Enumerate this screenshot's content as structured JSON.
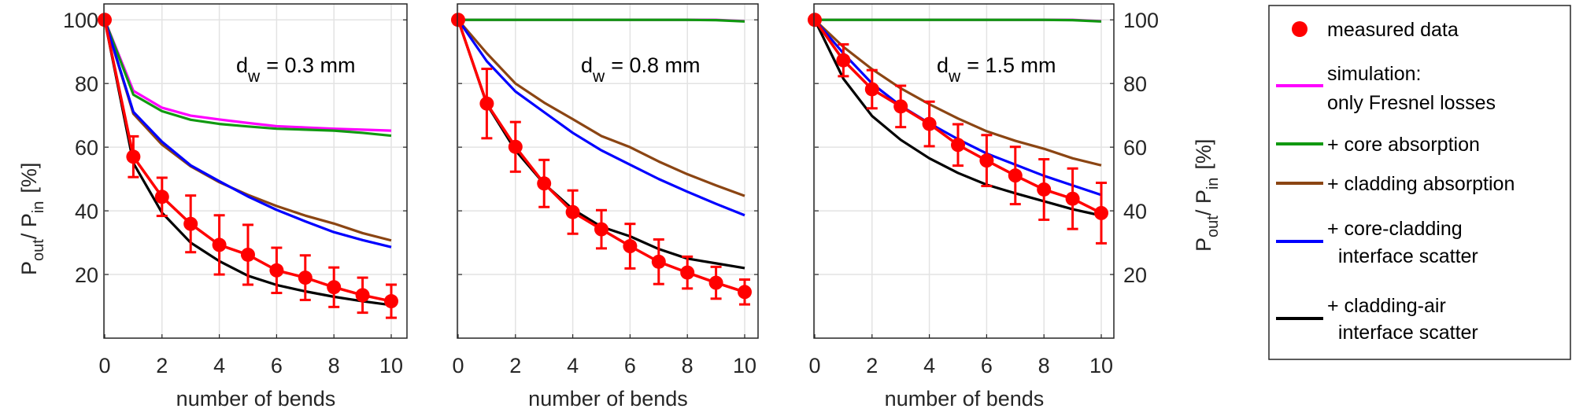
{
  "chart_data": {
    "type": "line",
    "xlabel": "number of bends",
    "ylabel": {
      "main": "P",
      "sub_out": "out",
      "mid": "/ P",
      "sub_in": "in",
      "unit": "[%]"
    },
    "xticks": [
      0,
      2,
      4,
      6,
      8,
      10
    ],
    "yticks": [
      20,
      40,
      60,
      80,
      100
    ],
    "xlim": [
      0,
      10.5
    ],
    "ylim": [
      0,
      105
    ],
    "grid": true,
    "legend_position": "right",
    "x": [
      0,
      1,
      2,
      3,
      4,
      5,
      6,
      7,
      8,
      9,
      10
    ],
    "colors": {
      "measured": "#ff0000",
      "fresnel": "#ff00ff",
      "core_abs": "#119911",
      "clad_abs": "#8b4513",
      "core_clad": "#0000ff",
      "clad_air": "#000000"
    },
    "legend": [
      {
        "key": "measured",
        "lines": [
          "measured data"
        ],
        "marker": "dot"
      },
      {
        "key": "fresnel",
        "lines": [
          "simulation:",
          "only Fresnel losses"
        ],
        "marker": "line"
      },
      {
        "key": "core_abs",
        "lines": [
          "+ core absorption"
        ],
        "marker": "line"
      },
      {
        "key": "clad_abs",
        "lines": [
          "+ cladding absorption"
        ],
        "marker": "line"
      },
      {
        "key": "core_clad",
        "lines": [
          "+ core-cladding",
          "  interface scatter"
        ],
        "marker": "line"
      },
      {
        "key": "clad_air",
        "lines": [
          "+ cladding-air",
          "  interface scatter"
        ],
        "marker": "line"
      }
    ],
    "panels": [
      {
        "annotation": {
          "d": "d",
          "sub": "w",
          "rest": "= 0.3 mm"
        },
        "measured": [
          100,
          57,
          44.4,
          35.9,
          29.3,
          26.2,
          21.3,
          19,
          16,
          13.5,
          11.6
        ],
        "measured_err": [
          0,
          6.4,
          6,
          8.9,
          9.3,
          9.4,
          7.1,
          7,
          6.2,
          5.5,
          5.2
        ],
        "fresnel": [
          100,
          77.7,
          72.4,
          69.9,
          68.7,
          67.6,
          66.6,
          66.2,
          65.8,
          65.5,
          65.2
        ],
        "core_abs": [
          100,
          76.5,
          71.3,
          68.6,
          67.3,
          66.5,
          65.8,
          65.5,
          65.2,
          64.5,
          63.6
        ],
        "clad_abs": [
          100,
          70.5,
          60.8,
          54,
          49,
          45,
          41.5,
          38.5,
          36,
          33,
          30.7
        ],
        "core_clad": [
          100,
          71.1,
          61.7,
          54.3,
          49.3,
          44.5,
          40.3,
          36.7,
          33.3,
          30.8,
          28.6
        ],
        "clad_air": [
          100,
          55,
          39.4,
          30,
          24.2,
          19.6,
          16.7,
          14.7,
          13,
          11.6,
          10.4
        ]
      },
      {
        "annotation": {
          "d": "d",
          "sub": "w",
          "rest": "= 0.8 mm"
        },
        "measured": [
          100,
          73.7,
          60.1,
          48.6,
          39.6,
          34.2,
          28.9,
          24,
          20.6,
          17.4,
          14.5
        ],
        "measured_err": [
          0,
          10.9,
          7.8,
          7.4,
          6.8,
          6,
          7,
          7,
          5,
          5,
          3.9
        ],
        "fresnel": [
          100,
          100,
          100,
          100,
          100,
          100,
          100,
          100,
          100,
          100,
          99.6
        ],
        "core_abs": [
          100,
          100,
          100,
          100,
          100,
          100,
          100,
          100,
          100,
          99.9,
          99.5
        ],
        "clad_abs": [
          100,
          89.5,
          80,
          74,
          68.8,
          63.5,
          60,
          55.5,
          51.5,
          48,
          44.7
        ],
        "core_clad": [
          100,
          87,
          77.5,
          71,
          64.5,
          59,
          54.5,
          50,
          46,
          42.2,
          38.6
        ],
        "clad_air": [
          100,
          73.5,
          59,
          48.5,
          40.5,
          35,
          32,
          28,
          25,
          23.5,
          22
        ]
      },
      {
        "annotation": {
          "d": "d",
          "sub": "w",
          "rest": "= 1.5 mm"
        },
        "measured": [
          100,
          87.3,
          78.2,
          72.8,
          67.3,
          60.7,
          55.8,
          51.1,
          46.7,
          43.8,
          39.3
        ],
        "measured_err": [
          0,
          5,
          6,
          6.5,
          7,
          6.5,
          8,
          9,
          9.5,
          9.5,
          9.5
        ],
        "fresnel": [
          100,
          100,
          100,
          100,
          100,
          100,
          100,
          100,
          100,
          100,
          99.6
        ],
        "core_abs": [
          100,
          100,
          100,
          100,
          100,
          100,
          100,
          100,
          100,
          99.9,
          99.5
        ],
        "clad_abs": [
          100,
          91.5,
          84.5,
          78.5,
          73.5,
          69,
          65,
          62,
          59.5,
          56.5,
          54.3
        ],
        "core_clad": [
          100,
          89.5,
          80,
          73,
          67.5,
          62.5,
          58,
          54.5,
          51,
          48,
          45
        ],
        "clad_air": [
          100,
          81.5,
          69.8,
          62.3,
          56.5,
          51.9,
          48.2,
          45.5,
          43,
          40.5,
          38.5
        ]
      }
    ]
  }
}
